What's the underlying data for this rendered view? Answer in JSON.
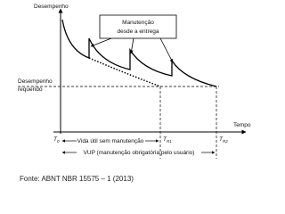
{
  "y_axis_label": "Desempenho",
  "x_axis_label": "Tempo",
  "callout": [
    "Manutenção",
    "desde a entrega"
  ],
  "required_label": [
    "Desempenho",
    "requerido"
  ],
  "time_marks": [
    {
      "main": "T",
      "sub": "0"
    },
    {
      "main": "T",
      "sub": "R1"
    },
    {
      "main": "T",
      "sub": "R2"
    }
  ],
  "spans": [
    "Vida útil sem manutenção",
    "VUP (manutenção obrigatória pelo usuário)"
  ],
  "source": "Fonte: ABNT NBR 15575 – 1 (2013)"
}
